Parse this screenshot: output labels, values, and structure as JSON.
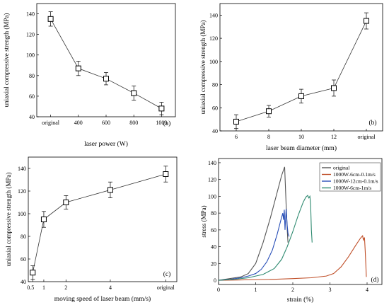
{
  "chart_data": [
    {
      "panel": "(a)",
      "type": "line",
      "categories": [
        "original",
        "400",
        "600",
        "800",
        "1000"
      ],
      "values": [
        135,
        87,
        77,
        63,
        48
      ],
      "errors": [
        7,
        7,
        6,
        7,
        6
      ],
      "xlabel": "laser power (W)",
      "ylabel": "uniaxial compressive strength (MPa)",
      "ylim": [
        40,
        150
      ],
      "yticks": [
        40,
        60,
        80,
        100,
        120,
        140
      ],
      "marker": "square",
      "grid": false
    },
    {
      "panel": "(b)",
      "type": "line",
      "categories": [
        "6",
        "8",
        "10",
        "12",
        "original"
      ],
      "values": [
        48,
        57,
        70,
        77,
        135
      ],
      "errors": [
        6,
        5,
        6,
        7,
        7
      ],
      "xlabel": "laser beam diameter (mm)",
      "ylabel": "uniaxial compressive strength (MPa)",
      "ylim": [
        40,
        150
      ],
      "yticks": [
        40,
        60,
        80,
        100,
        120,
        140
      ],
      "marker": "square",
      "grid": false
    },
    {
      "panel": "(c)",
      "type": "line",
      "categories": [
        "0.5",
        "1",
        "2",
        "4",
        "original"
      ],
      "x": [
        0.5,
        1,
        2,
        4,
        6.5
      ],
      "values": [
        48,
        95,
        110,
        121,
        135
      ],
      "errors": [
        6,
        7,
        6,
        7,
        7
      ],
      "xlabel": "moving speed of laser beam (mm/s)",
      "ylabel": "uniaxial compressive strength (MPa)",
      "ylim": [
        40,
        150
      ],
      "yticks": [
        40,
        60,
        80,
        100,
        120,
        140
      ],
      "marker": "square",
      "grid": false
    },
    {
      "panel": "(d)",
      "type": "line",
      "xlabel": "strain (%)",
      "ylabel": "stress (MPa)",
      "xlim": [
        0,
        4.4
      ],
      "ylim": [
        -5,
        145
      ],
      "xticks": [
        0,
        1,
        2,
        3,
        4
      ],
      "yticks": [
        0,
        20,
        40,
        60,
        80,
        100,
        120,
        140
      ],
      "legend_position": "top-right",
      "grid": false,
      "series": [
        {
          "name": "original",
          "color": "#555555",
          "points": [
            [
              0,
              0
            ],
            [
              0.3,
              2
            ],
            [
              0.6,
              4
            ],
            [
              0.8,
              8
            ],
            [
              1.0,
              20
            ],
            [
              1.2,
              45
            ],
            [
              1.4,
              75
            ],
            [
              1.55,
              100
            ],
            [
              1.7,
              125
            ],
            [
              1.78,
              135
            ],
            [
              1.82,
              90
            ],
            [
              1.85,
              60
            ],
            [
              1.87,
              45
            ]
          ]
        },
        {
          "name": "1000W-6cm-0.1m/s",
          "color": "#c0502a",
          "points": [
            [
              0,
              0
            ],
            [
              0.5,
              0.3
            ],
            [
              1.0,
              0.8
            ],
            [
              1.5,
              1.2
            ],
            [
              2.0,
              2
            ],
            [
              2.5,
              3
            ],
            [
              2.9,
              5
            ],
            [
              3.1,
              8
            ],
            [
              3.3,
              16
            ],
            [
              3.5,
              28
            ],
            [
              3.7,
              42
            ],
            [
              3.82,
              50
            ],
            [
              3.88,
              53
            ],
            [
              3.9,
              48
            ],
            [
              3.93,
              51
            ],
            [
              3.95,
              35
            ],
            [
              3.97,
              15
            ],
            [
              3.98,
              4
            ]
          ]
        },
        {
          "name": "1000W-12cm-0.1m/s",
          "color": "#2a50b8",
          "points": [
            [
              0,
              0
            ],
            [
              0.3,
              1
            ],
            [
              0.6,
              3
            ],
            [
              0.8,
              5
            ],
            [
              1.0,
              8
            ],
            [
              1.15,
              13
            ],
            [
              1.3,
              22
            ],
            [
              1.45,
              36
            ],
            [
              1.58,
              55
            ],
            [
              1.68,
              72
            ],
            [
              1.73,
              80
            ],
            [
              1.75,
              72
            ],
            [
              1.77,
              84
            ],
            [
              1.79,
              60
            ],
            [
              1.82,
              85
            ],
            [
              1.85,
              65
            ],
            [
              1.87,
              56
            ],
            [
              1.9,
              52
            ]
          ]
        },
        {
          "name": "1000W-6cm-1m/s",
          "color": "#2e8a70",
          "points": [
            [
              0,
              0
            ],
            [
              0.4,
              1
            ],
            [
              0.8,
              3
            ],
            [
              1.2,
              7
            ],
            [
              1.5,
              14
            ],
            [
              1.7,
              25
            ],
            [
              1.85,
              40
            ],
            [
              2.0,
              58
            ],
            [
              2.15,
              78
            ],
            [
              2.28,
              93
            ],
            [
              2.35,
              99
            ],
            [
              2.4,
              101
            ],
            [
              2.43,
              98
            ],
            [
              2.46,
              100
            ],
            [
              2.48,
              90
            ],
            [
              2.5,
              60
            ],
            [
              2.52,
              45
            ]
          ]
        }
      ]
    }
  ]
}
